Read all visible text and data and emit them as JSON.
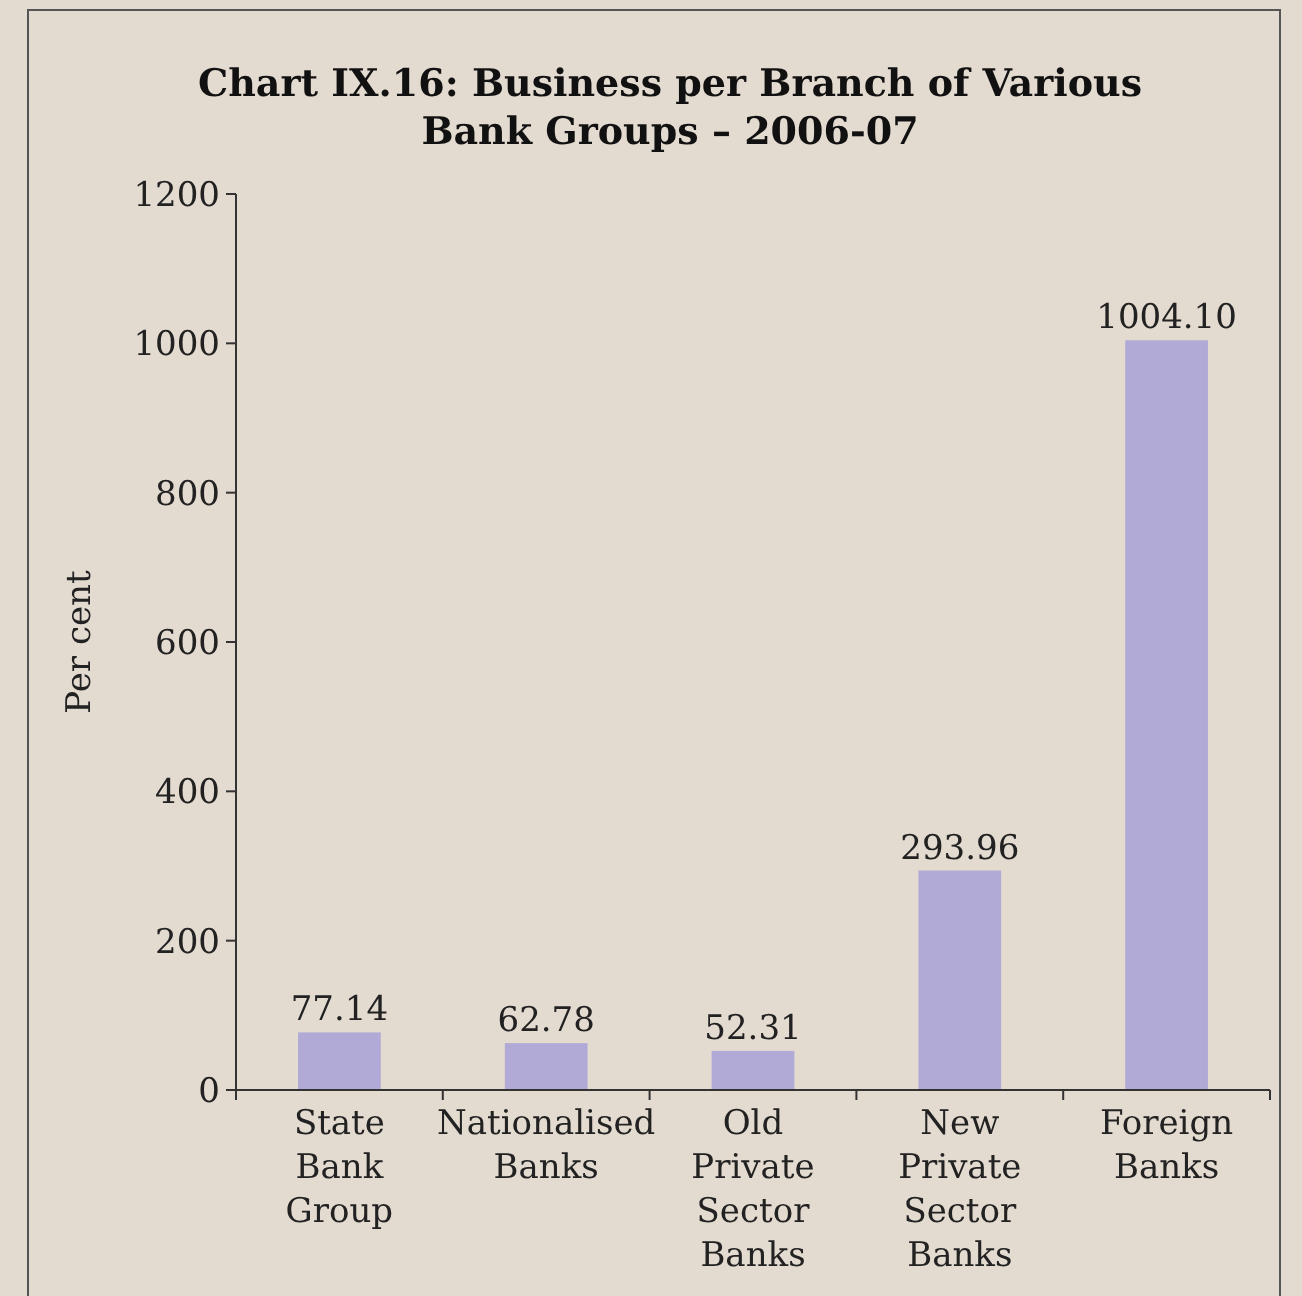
{
  "chart_data": {
    "type": "bar",
    "title": "Chart IX.16: Business per Branch of Various Bank Groups – 2006-07",
    "ylabel": "Per cent",
    "categories": [
      "State Bank Group",
      "Nationalised Banks",
      "Old Private Sector Banks",
      "New Private Sector Banks",
      "Foreign Banks"
    ],
    "values": [
      77.14,
      62.78,
      52.31,
      293.96,
      1004.1
    ],
    "value_labels": [
      "77.14",
      "62.78",
      "52.31",
      "293.96",
      "1004.10"
    ],
    "color": "#b1aad7",
    "ylim": [
      0,
      1200
    ],
    "yticks": [
      0,
      200,
      400,
      600,
      800,
      1000,
      1200
    ],
    "grid": false
  }
}
